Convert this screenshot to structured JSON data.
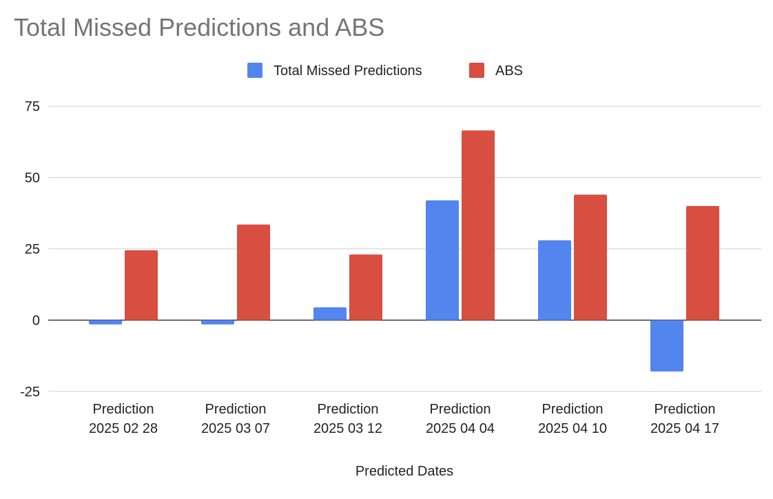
{
  "chart_data": {
    "type": "bar",
    "title": "Total Missed Predictions and ABS",
    "xlabel": "Predicted Dates",
    "ylabel": "",
    "ylim": [
      -25,
      75
    ],
    "yticks": [
      75,
      50,
      25,
      0,
      -25
    ],
    "grid": true,
    "legend_position": "top",
    "categories": [
      [
        "Prediction",
        "2025 02 28"
      ],
      [
        "Prediction",
        "2025 03 07"
      ],
      [
        "Prediction",
        "2025 03 12"
      ],
      [
        "Prediction",
        "2025 04 04"
      ],
      [
        "Prediction",
        "2025 04 10"
      ],
      [
        "Prediction",
        "2025 04 17"
      ]
    ],
    "series": [
      {
        "name": "Total Missed Predictions",
        "color": "#5385ee",
        "values": [
          -1.5,
          -1.5,
          4.5,
          42,
          28,
          -18
        ]
      },
      {
        "name": "ABS",
        "color": "#d84e40",
        "values": [
          24.5,
          33.5,
          23,
          66.5,
          44,
          40
        ]
      }
    ]
  }
}
